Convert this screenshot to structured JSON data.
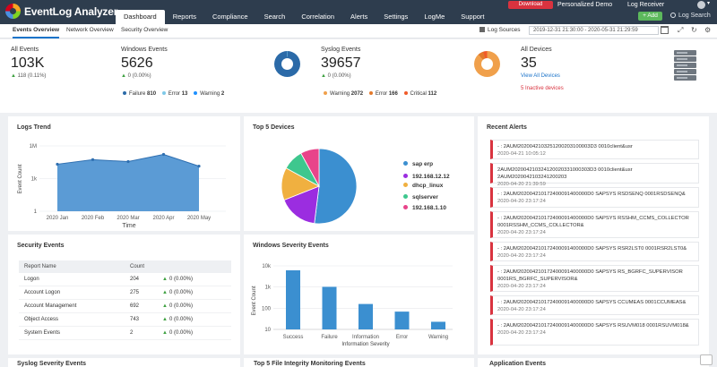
{
  "app": {
    "name": "EventLog Analyzer"
  },
  "nav": [
    "Dashboard",
    "Reports",
    "Compliance",
    "Search",
    "Correlation",
    "Alerts",
    "Settings",
    "LogMe",
    "Support"
  ],
  "topbar": {
    "download": "Download",
    "personalized": "Personalized Demo",
    "log_receiver": "Log Receiver",
    "add": "+ Add",
    "log_search": "Log Search"
  },
  "subtabs": [
    "Events Overview",
    "Network Overview",
    "Security Overview"
  ],
  "toolbar": {
    "log_sources": "Log Sources",
    "date_range": "2019-12-31 21:30:00 - 2020-05-31 21:29:59"
  },
  "summary": {
    "all_events": {
      "label": "All Events",
      "value": "103K",
      "delta": "118 (0.11%)"
    },
    "windows": {
      "label": "Windows Events",
      "value": "5626",
      "delta": "0 (0.00%)",
      "legend": [
        {
          "name": "Failure",
          "count": "810",
          "color": "#2b6aa8"
        },
        {
          "name": "Error",
          "count": "13",
          "color": "#7fc9e8"
        },
        {
          "name": "Warning",
          "count": "2",
          "color": "#1e90ff"
        }
      ]
    },
    "syslog": {
      "label": "Syslog Events",
      "value": "39657",
      "delta": "0 (0.00%)",
      "legend": [
        {
          "name": "Warning",
          "count": "2072",
          "color": "#f0a04b"
        },
        {
          "name": "Error",
          "count": "166",
          "color": "#e3792b"
        },
        {
          "name": "Critical",
          "count": "112",
          "color": "#f05a28"
        }
      ]
    },
    "devices": {
      "label": "All Devices",
      "value": "35",
      "view_link": "View All Devices",
      "inactive": "5 Inactive devices"
    }
  },
  "panels": {
    "logs_trend": "Logs Trend",
    "top5": "Top 5 Devices",
    "recent_alerts": "Recent Alerts",
    "security_events": "Security Events",
    "windows_severity": "Windows Severity Events",
    "syslog_severity": "Syslog Severity Events",
    "fim": "Top 5 File Integrity Monitoring Events",
    "app_events": "Application Events"
  },
  "logs_trend_chart": {
    "type": "line",
    "xlabel": "Time",
    "ylabel": "Event Count",
    "y_ticks": [
      "1M",
      "1k",
      "1"
    ],
    "x": [
      "2020 Jan",
      "2020 Feb",
      "2020 Mar",
      "2020 Apr",
      "2020 May"
    ],
    "values": [
      0.72,
      0.79,
      0.76,
      0.87,
      0.69
    ]
  },
  "top5_chart": {
    "type": "pie",
    "slices": [
      {
        "name": "sap erp",
        "value": 52,
        "color": "#3b8fd0"
      },
      {
        "name": "192.168.12.12",
        "value": 17,
        "color": "#9b2de0"
      },
      {
        "name": "dhcp_linux",
        "value": 14,
        "color": "#f0b040"
      },
      {
        "name": "sqlserver",
        "value": 9,
        "color": "#3ec78e"
      },
      {
        "name": "192.168.1.10",
        "value": 8,
        "color": "#e8448a"
      }
    ]
  },
  "security_table": {
    "headers": [
      "Report Name",
      "Count"
    ],
    "rows": [
      {
        "name": "Logon",
        "count": "204",
        "delta": "0 (0.00%)"
      },
      {
        "name": "Account Logon",
        "count": "275",
        "delta": "0 (0.00%)"
      },
      {
        "name": "Account Management",
        "count": "692",
        "delta": "0 (0.00%)"
      },
      {
        "name": "Object Access",
        "count": "743",
        "delta": "0 (0.00%)"
      },
      {
        "name": "System Events",
        "count": "2",
        "delta": "0 (0.00%)"
      }
    ]
  },
  "windows_chart": {
    "type": "bar",
    "xlabel": "Information Severity",
    "ylabel": "Event Count",
    "y_ticks": [
      "10k",
      "1k",
      "100",
      "10"
    ],
    "categories": [
      "Success",
      "Failure",
      "Information",
      "Error",
      "Warning"
    ],
    "values": [
      0.93,
      0.67,
      0.4,
      0.28,
      0.12
    ]
  },
  "alerts": [
    {
      "text": "- : 2AUM2020042103251200203100003D3 0010client&usr",
      "time": "2020-04-21 10:05:12"
    },
    {
      "text": "2AUM202004210324120020331000303D3 0010client&usr 2AUM2020042103241200203",
      "time": "2020-04-20 21:39:59"
    },
    {
      "text": "- : 2AUM202004210172400091400000D0 SAPSYS RSDSENQ 0001RSDSENQ&",
      "time": "2020-04-20 23:17:24"
    },
    {
      "text": "- : 2AUM202004210172400091400000D0 SAPSYS RSSHM_CCMS_COLLECTOR 0001RSSHM_CCMS_COLLECTOR&",
      "time": "2020-04-20 23:17:24"
    },
    {
      "text": "- : 2AUM202004210172400091400000D0 SAPSYS RSR2LST0 0001RSR2LST0&",
      "time": "2020-04-20 23:17:24"
    },
    {
      "text": "- : 2AUM202004210172400091400000D0 SAPSYS RS_BGRFC_SUPERVISOR 0001RS_BGRFC_SUPERVISOR&",
      "time": "2020-04-20 23:17:24"
    },
    {
      "text": "- : 2AUM202004210172400091400000D0 SAPSYS CCUMEAS 0001CCUMEAS&",
      "time": "2020-04-20 23:17:24"
    },
    {
      "text": "- : 2AUM202004210172400091400000D0 SAPSYS RSUVM018 0001RSUVM018&",
      "time": "2020-04-20 23:17:24"
    }
  ]
}
